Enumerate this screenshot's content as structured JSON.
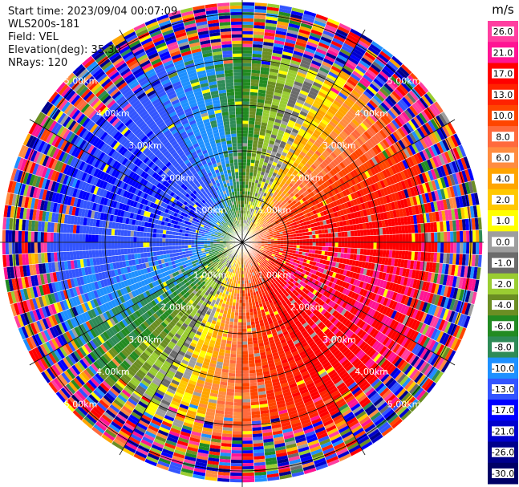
{
  "info": {
    "start_time": "Start time: 2023/09/04 00:07:09",
    "station": "WLS200s-181",
    "field": "Field: VEL",
    "elevation": "Elevation(deg): 35.30",
    "nrays": "NRays: 120"
  },
  "chart_data": {
    "type": "heatmap",
    "projection": "polar-ppi",
    "field": "VEL",
    "unit": "m/s",
    "n_rays": 120,
    "elevation_deg": 35.3,
    "range_rings_km": [
      1.0,
      2.0,
      3.0,
      4.0,
      5.0
    ],
    "ring_labels": [
      "1.00km",
      "2.00km",
      "3.00km",
      "4.00km",
      "5.00km"
    ],
    "max_range_km": 5.3,
    "velocity_pattern": {
      "description_of_sectors": "negative (blue/green) to the west, positive (orange/red) to the south-east",
      "approach_azimuth_deg": 285,
      "recede_azimuth_deg": 115,
      "peak_speed_mps": 17,
      "noise_beyond_km": 4.2
    },
    "colorbar": {
      "title": "m/s",
      "ticks": [
        26.0,
        21.0,
        17.0,
        13.0,
        10.0,
        8.0,
        6.0,
        4.0,
        2.0,
        1.0,
        0.0,
        -1.0,
        -2.0,
        -4.0,
        -6.0,
        -8.0,
        -10.0,
        -13.0,
        -17.0,
        -21.0,
        -26.0,
        -30.0
      ],
      "tick_labels": [
        "26.0",
        "21.0",
        "17.0",
        "13.0",
        "10.0",
        "8.0",
        "6.0",
        "4.0",
        "2.0",
        "1.0",
        "0.0",
        "-1.0",
        "-2.0",
        "-4.0",
        "-6.0",
        "-8.0",
        "-10.0",
        "-13.0",
        "-17.0",
        "-21.0",
        "-26.0",
        "-30.0"
      ],
      "colors": [
        "#ff3fa0",
        "#ff1493",
        "#ff0000",
        "#ff2200",
        "#ff4500",
        "#ff6a3d",
        "#ff8c40",
        "#ffa500",
        "#ffc800",
        "#ffff00",
        "#9e9e9e",
        "#6b6b6b",
        "#9acd32",
        "#6b8e23",
        "#228b22",
        "#2e8b57",
        "#1e90ff",
        "#3355ff",
        "#0000ff",
        "#0000cd",
        "#00008b",
        "#000066"
      ]
    }
  }
}
